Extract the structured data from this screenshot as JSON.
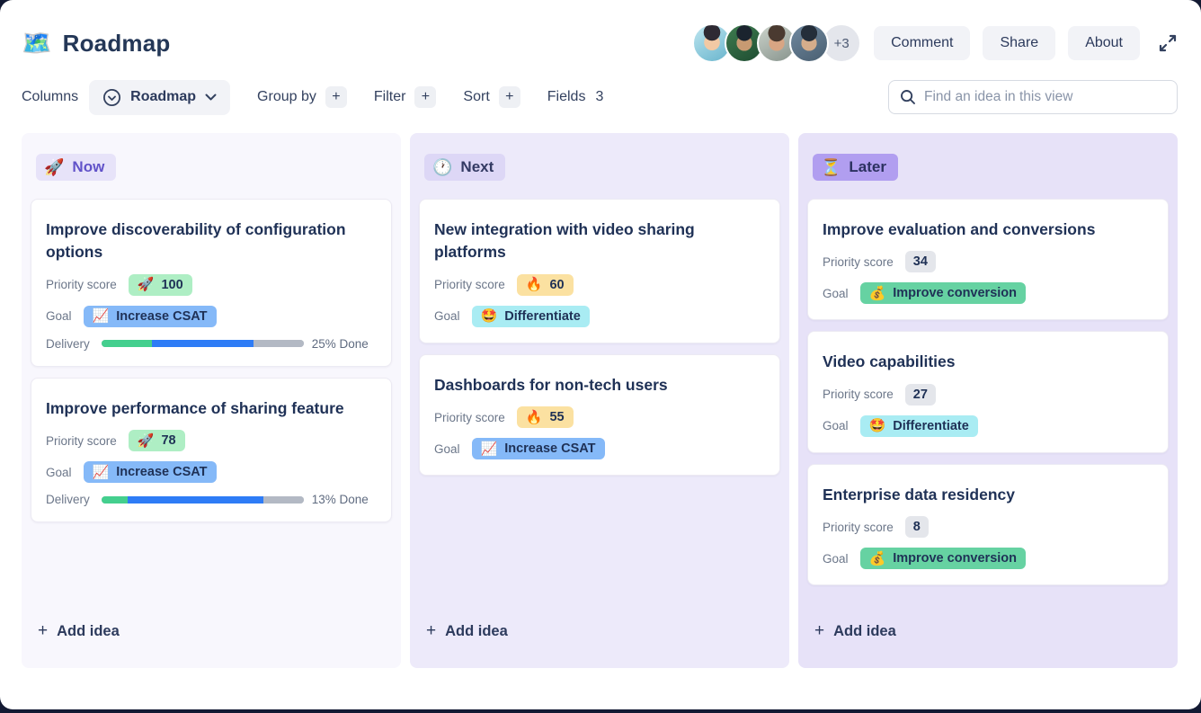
{
  "page": {
    "title": "Roadmap",
    "title_emoji": "🗺️"
  },
  "header": {
    "avatars": [
      "avatar-1",
      "avatar-2",
      "avatar-3",
      "avatar-4"
    ],
    "avatar_overflow": "+3",
    "buttons": [
      {
        "label": "Comment"
      },
      {
        "label": "Share"
      },
      {
        "label": "About"
      }
    ],
    "expand_icon": "expand-diagonal-arrows"
  },
  "toolbar": {
    "columns_label": "Columns",
    "view_selector": {
      "value": "Roadmap",
      "icon": "circle-chevron-down-icon"
    },
    "group_by": {
      "label": "Group by",
      "button": "+"
    },
    "filter": {
      "label": "Filter",
      "button": "+"
    },
    "sort": {
      "label": "Sort",
      "button": "+"
    },
    "fields": {
      "label": "Fields",
      "count": "3"
    },
    "search": {
      "placeholder": "Find an idea in this view",
      "value": "",
      "icon": "search-icon"
    }
  },
  "board": {
    "add_idea_plus": "+",
    "add_idea_label": "Add idea",
    "columns": [
      {
        "id": "now",
        "label": "Now",
        "emoji": "🚀",
        "cards": [
          {
            "title": "Improve discoverability of configuration options",
            "fields": [
              {
                "type": "badge",
                "label": "Priority score",
                "emoji": "🚀",
                "value": "100",
                "style": "green"
              },
              {
                "type": "badge",
                "label": "Goal",
                "emoji": "📈",
                "value": "Increase CSAT",
                "style": "blue"
              },
              {
                "type": "progress",
                "label": "Delivery",
                "text": "25% Done",
                "segments": [
                  {
                    "color": "green",
                    "pct": 25
                  },
                  {
                    "color": "blue",
                    "pct": 50
                  },
                  {
                    "color": "gray",
                    "pct": 25
                  }
                ]
              }
            ]
          },
          {
            "title": "Improve performance of sharing feature",
            "fields": [
              {
                "type": "badge",
                "label": "Priority score",
                "emoji": "🚀",
                "value": "78",
                "style": "green"
              },
              {
                "type": "badge",
                "label": "Goal",
                "emoji": "📈",
                "value": "Increase CSAT",
                "style": "blue"
              },
              {
                "type": "progress",
                "label": "Delivery",
                "text": "13% Done",
                "segments": [
                  {
                    "color": "green",
                    "pct": 13
                  },
                  {
                    "color": "blue",
                    "pct": 67
                  },
                  {
                    "color": "gray",
                    "pct": 20
                  }
                ]
              }
            ]
          }
        ]
      },
      {
        "id": "next",
        "label": "Next",
        "emoji": "🕐",
        "cards": [
          {
            "title": "New integration with video sharing platforms",
            "fields": [
              {
                "type": "badge",
                "label": "Priority score",
                "emoji": "🔥",
                "value": "60",
                "style": "yellow"
              },
              {
                "type": "badge",
                "label": "Goal",
                "emoji": "🤩",
                "value": "Differentiate",
                "style": "cyan"
              }
            ]
          },
          {
            "title": "Dashboards for non-tech users",
            "fields": [
              {
                "type": "badge",
                "label": "Priority score",
                "emoji": "🔥",
                "value": "55",
                "style": "yellow"
              },
              {
                "type": "badge",
                "label": "Goal",
                "emoji": "📈",
                "value": "Increase CSAT",
                "style": "blue"
              }
            ]
          }
        ]
      },
      {
        "id": "later",
        "label": "Later",
        "emoji": "⏳",
        "cards": [
          {
            "title": "Improve evaluation and conversions",
            "fields": [
              {
                "type": "badge",
                "label": "Priority score",
                "emoji": "",
                "value": "34",
                "style": "gray"
              },
              {
                "type": "badge",
                "label": "Goal",
                "emoji": "💰",
                "value": "Improve conversion",
                "style": "green-strong"
              }
            ]
          },
          {
            "title": "Video capabilities",
            "fields": [
              {
                "type": "badge",
                "label": "Priority score",
                "emoji": "",
                "value": "27",
                "style": "gray"
              },
              {
                "type": "badge",
                "label": "Goal",
                "emoji": "🤩",
                "value": "Differentiate",
                "style": "cyan"
              }
            ]
          },
          {
            "title": "Enterprise data residency",
            "fields": [
              {
                "type": "badge",
                "label": "Priority score",
                "emoji": "",
                "value": "8",
                "style": "gray"
              },
              {
                "type": "badge",
                "label": "Goal",
                "emoji": "💰",
                "value": "Improve conversion",
                "style": "green-strong"
              }
            ]
          }
        ]
      }
    ]
  },
  "colors": {
    "accent_purple": "#6152c9",
    "title_text": "#243757",
    "badge_green_bg": "#aeeec4",
    "badge_yellow_bg": "#fbe1a1",
    "badge_gray_bg": "#e4e6eb",
    "badge_blue_bg": "#85b9f8",
    "badge_cyan_bg": "#a9ecf3",
    "badge_green_strong_bg": "#66d2a2",
    "progress_green": "#44cf8e",
    "progress_blue": "#2e7cf6",
    "progress_gray": "#b3b9c4",
    "column_now_bg": "#f8f7fd",
    "column_next_bg": "#edeafa",
    "column_later_bg": "#e7e2f8"
  }
}
